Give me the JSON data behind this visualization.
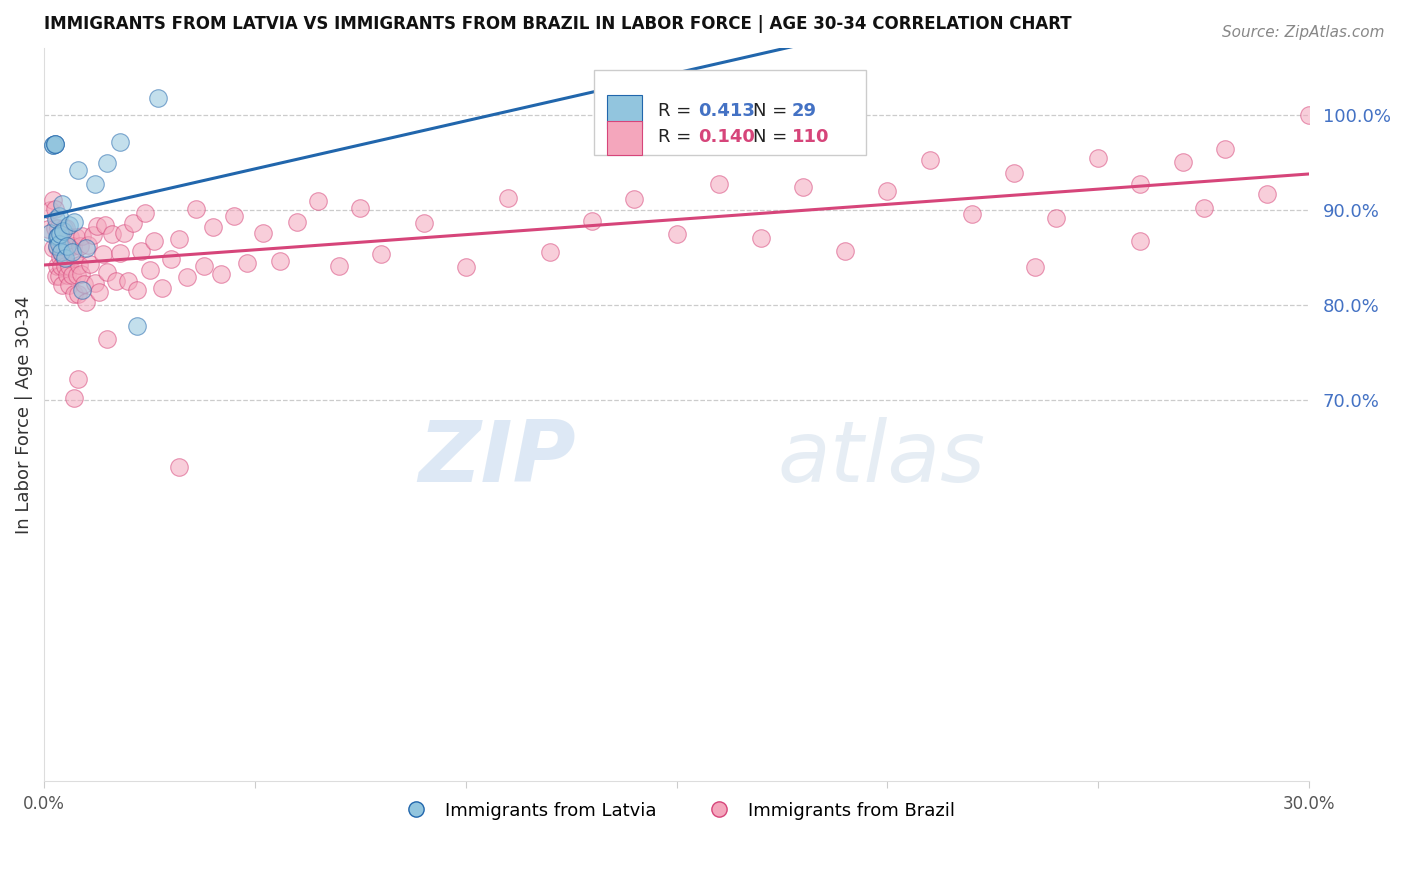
{
  "title": "IMMIGRANTS FROM LATVIA VS IMMIGRANTS FROM BRAZIL IN LABOR FORCE | AGE 30-34 CORRELATION CHART",
  "source": "Source: ZipAtlas.com",
  "ylabel": "In Labor Force | Age 30-34",
  "xlim": [
    0.0,
    0.3
  ],
  "ylim": [
    0.3,
    1.07
  ],
  "watermark_zip": "ZIP",
  "watermark_atlas": "atlas",
  "r_latvia": 0.413,
  "n_latvia": 29,
  "r_brazil": 0.14,
  "n_brazil": 110,
  "legend_label_latvia": "Immigrants from Latvia",
  "legend_label_brazil": "Immigrants from Brazil",
  "color_latvia": "#92c5de",
  "color_brazil": "#f4a6bc",
  "line_color_latvia": "#2166ac",
  "line_color_brazil": "#d6457a",
  "ytick_positions": [
    0.7,
    0.8,
    0.9,
    1.0
  ],
  "ytick_labels": [
    "70.0%",
    "80.0%",
    "90.0%",
    "100.0%"
  ],
  "title_fontsize": 12,
  "source_fontsize": 11,
  "tick_color": "#4472c4"
}
